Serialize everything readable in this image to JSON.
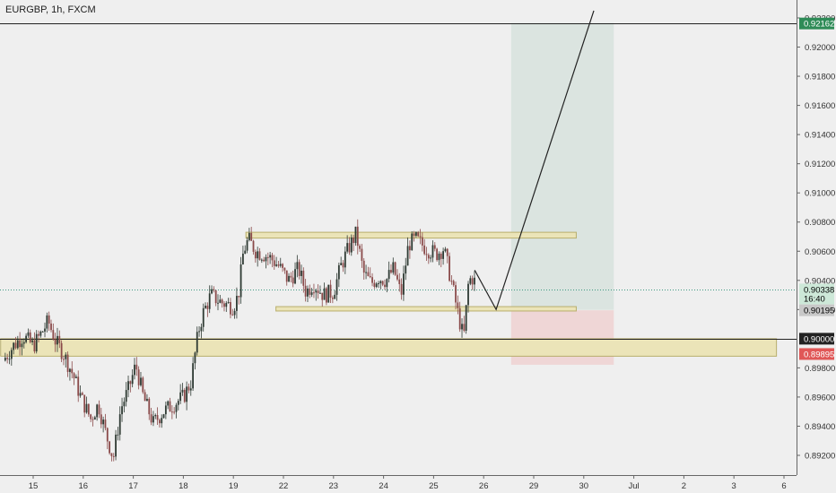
{
  "title": "EURGBP, 1h, FXCM",
  "chart_data": {
    "type": "candlestick",
    "title": "EURGBP, 1h, FXCM",
    "ylim": [
      0.8905,
      0.9225
    ],
    "y_ticks": [
      "0.92200",
      "0.92000",
      "0.91800",
      "0.91600",
      "0.91400",
      "0.91200",
      "0.91000",
      "0.90800",
      "0.90600",
      "0.90400",
      "0.90200",
      "0.89800",
      "0.89600",
      "0.89400",
      "0.89200"
    ],
    "y_tick_values": [
      0.922,
      0.92,
      0.918,
      0.916,
      0.914,
      0.912,
      0.91,
      0.908,
      0.906,
      0.904,
      0.902,
      0.898,
      0.896,
      0.894,
      0.892
    ],
    "x_ticks": [
      "15",
      "16",
      "17",
      "18",
      "19",
      "22",
      "23",
      "24",
      "25",
      "26",
      "29",
      "30",
      "Jul",
      "2",
      "3",
      "6"
    ],
    "x_tick_index": [
      0,
      1,
      2,
      3,
      4,
      5,
      6,
      7,
      8,
      9,
      10,
      11,
      12,
      13,
      14,
      15
    ],
    "last_candle_index": 8.85,
    "price_path": [
      [
        -0.6,
        0.8985
      ],
      [
        -0.4,
        0.8995
      ],
      [
        -0.2,
        0.9002
      ],
      [
        0.0,
        0.8995
      ],
      [
        0.15,
        0.9003
      ],
      [
        0.3,
        0.9012
      ],
      [
        0.45,
        0.8998
      ],
      [
        0.6,
        0.899
      ],
      [
        0.8,
        0.8975
      ],
      [
        0.95,
        0.896
      ],
      [
        1.15,
        0.8945
      ],
      [
        1.3,
        0.8955
      ],
      [
        1.45,
        0.8935
      ],
      [
        1.6,
        0.8918
      ],
      [
        1.75,
        0.8952
      ],
      [
        1.9,
        0.8965
      ],
      [
        2.05,
        0.8982
      ],
      [
        2.2,
        0.896
      ],
      [
        2.4,
        0.8942
      ],
      [
        2.6,
        0.895
      ],
      [
        2.8,
        0.8955
      ],
      [
        3.0,
        0.896
      ],
      [
        3.15,
        0.897
      ],
      [
        3.3,
        0.9005
      ],
      [
        3.4,
        0.9018
      ],
      [
        3.55,
        0.903
      ],
      [
        3.75,
        0.9025
      ],
      [
        4.0,
        0.9022
      ],
      [
        4.1,
        0.903
      ],
      [
        4.2,
        0.906
      ],
      [
        4.3,
        0.9068
      ],
      [
        4.45,
        0.906
      ],
      [
        4.6,
        0.9058
      ],
      [
        4.75,
        0.9055
      ],
      [
        4.9,
        0.905
      ],
      [
        5.1,
        0.904
      ],
      [
        5.3,
        0.9048
      ],
      [
        5.45,
        0.9032
      ],
      [
        5.6,
        0.9038
      ],
      [
        5.8,
        0.903
      ],
      [
        6.0,
        0.9032
      ],
      [
        6.15,
        0.905
      ],
      [
        6.3,
        0.9062
      ],
      [
        6.45,
        0.9072
      ],
      [
        6.6,
        0.9045
      ],
      [
        6.75,
        0.9038
      ],
      [
        6.9,
        0.9042
      ],
      [
        7.05,
        0.904
      ],
      [
        7.2,
        0.9048
      ],
      [
        7.35,
        0.903
      ],
      [
        7.5,
        0.9065
      ],
      [
        7.65,
        0.9068
      ],
      [
        7.85,
        0.9062
      ],
      [
        8.05,
        0.9058
      ],
      [
        8.2,
        0.9062
      ],
      [
        8.35,
        0.904
      ],
      [
        8.5,
        0.9015
      ],
      [
        8.6,
        0.9
      ],
      [
        8.7,
        0.904
      ],
      [
        8.8,
        0.9042
      ],
      [
        8.85,
        0.9034
      ]
    ],
    "zones": [
      {
        "from": 4.25,
        "to": 10.85,
        "y_low": 0.9069,
        "y_high": 0.9073
      },
      {
        "from": 4.85,
        "to": 10.85,
        "y_low": 0.9019,
        "y_high": 0.9022
      },
      {
        "from": -0.65,
        "to": 14.85,
        "y_low": 0.8988,
        "y_high": 0.9
      }
    ],
    "horizontal_lines": [
      {
        "value": 0.92162,
        "style": "solid"
      },
      {
        "value": 0.9,
        "style": "solid"
      },
      {
        "value": 0.90338,
        "style": "dotted"
      }
    ],
    "position": {
      "from": 9.55,
      "to": 11.6,
      "entry": 0.90195,
      "target": 0.92162,
      "stop": 0.89895
    },
    "projection": [
      [
        8.82,
        0.9047
      ],
      [
        9.25,
        0.902
      ],
      [
        11.2,
        0.9225
      ]
    ],
    "price_tags": [
      {
        "label": "0.92162",
        "value": 0.92162,
        "bg": "#2e8b57",
        "fg": "#ffffff"
      },
      {
        "label": "0.90338",
        "value": 0.90338,
        "bg": "#cde8d8",
        "fg": "#000000"
      },
      {
        "label": "16:40",
        "value": 0.90275,
        "bg": "#cde8d8",
        "fg": "#000000"
      },
      {
        "label": "0.90195",
        "value": 0.90195,
        "bg": "#c8c8c8",
        "fg": "#000000"
      },
      {
        "label": "0.90000",
        "value": 0.9,
        "bg": "#222222",
        "fg": "#ffffff"
      },
      {
        "label": "0.89895",
        "value": 0.89895,
        "bg": "#e05757",
        "fg": "#ffffff"
      }
    ],
    "colors": {
      "background": "#efefef",
      "zone_fill": "#ebe4b8",
      "zone_stroke": "#b8ae6c",
      "target_zone": "#dbe4e0",
      "stop_zone": "#efd6d6",
      "candle_up": "#2e3a33",
      "candle_down": "#8a4a4a",
      "line": "#222222",
      "dotted": "#3c9a80"
    }
  }
}
